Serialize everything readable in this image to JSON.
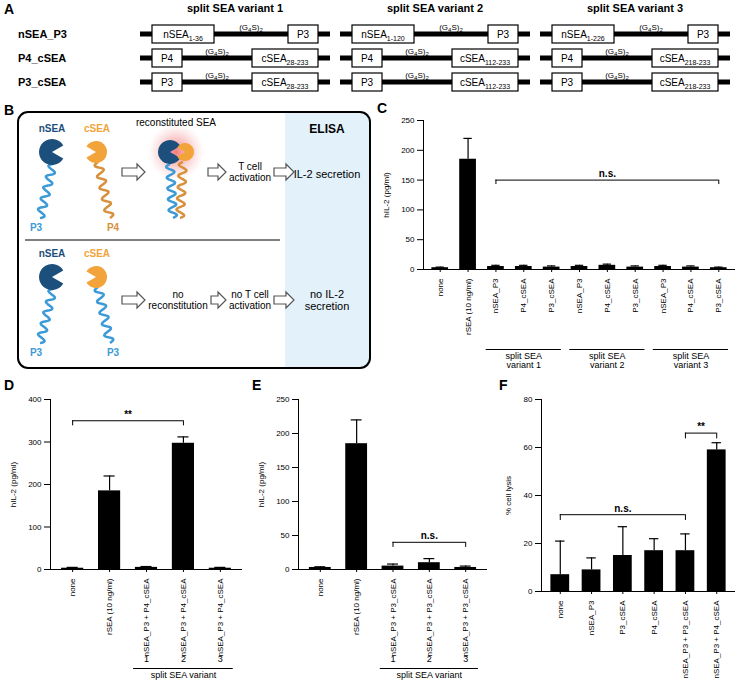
{
  "panel_a": {
    "label": "A",
    "columns": [
      "split SEA variant 1",
      "split SEA variant 2",
      "split SEA variant 3"
    ],
    "linker": [
      {
        "text": "(G"
      },
      {
        "text": "4",
        "sub": true
      },
      {
        "text": "S)"
      },
      {
        "text": "2",
        "sub": true
      }
    ],
    "rows": [
      {
        "name": "nSEA_P3",
        "constructs": [
          [
            {
              "text": "nSEA",
              "sub": "1-36"
            },
            {
              "text": "P3"
            }
          ],
          [
            {
              "text": "nSEA",
              "sub": "1-120"
            },
            {
              "text": "P3"
            }
          ],
          [
            {
              "text": "nSEA",
              "sub": "1-226"
            },
            {
              "text": "P3"
            }
          ]
        ]
      },
      {
        "name": "P4_cSEA",
        "constructs": [
          [
            {
              "text": "P4"
            },
            {
              "text": "cSEA",
              "sub": "28-233"
            }
          ],
          [
            {
              "text": "P4"
            },
            {
              "text": "cSEA",
              "sub": "112-233"
            }
          ],
          [
            {
              "text": "P4"
            },
            {
              "text": "cSEA",
              "sub": "218-233"
            }
          ]
        ]
      },
      {
        "name": "P3_cSEA",
        "constructs": [
          [
            {
              "text": "P3"
            },
            {
              "text": "cSEA",
              "sub": "28-233"
            }
          ],
          [
            {
              "text": "P3"
            },
            {
              "text": "cSEA",
              "sub": "112-233"
            }
          ],
          [
            {
              "text": "P3"
            },
            {
              "text": "cSEA",
              "sub": "218-233"
            }
          ]
        ]
      }
    ]
  },
  "panel_b": {
    "label": "B",
    "nsea": "nSEA",
    "csea": "cSEA",
    "top_left_helix": "P3",
    "top_right_helix": "P4",
    "bottom_left_helix": "P3",
    "bottom_right_helix": "P3",
    "reconstituted": "reconstituted SEA",
    "activation": "T cell activation",
    "readout": "IL-2 secretion",
    "no_reconstitution": "no reconstitution",
    "no_activation": "no T cell activation",
    "no_readout": "no IL-2 secretion",
    "assay": "ELISA"
  },
  "chart_data": [
    {
      "title": "C",
      "type": "bar",
      "y_label": "hIL-2 (pg/ml)",
      "categories": [
        "none",
        "rSEA (10 ng/ml)",
        "nSEA_P3",
        "P4_cSEA",
        "P3_cSEA",
        "nSEA_P3",
        "P4_cSEA",
        "P3_cSEA",
        "nSEA_P3",
        "P4_cSEA",
        "P3_cSEA"
      ],
      "values": [
        3,
        185,
        5,
        5,
        4,
        5,
        7,
        4,
        5,
        4,
        3
      ],
      "errors": [
        1,
        35,
        2,
        2,
        2,
        2,
        2,
        2,
        2,
        2,
        1
      ],
      "color": "#000000",
      "ylim": [
        0,
        250
      ],
      "yticks": [
        0,
        50,
        100,
        150,
        200,
        250
      ],
      "grid": false,
      "annotations": [
        {
          "text": "n.s.",
          "from": 2,
          "to": 10,
          "y": 150
        }
      ],
      "groups": [
        {
          "label": "split SEA variant 1",
          "from": 2,
          "to": 4
        },
        {
          "label": "split SEA variant 2",
          "from": 5,
          "to": 7
        },
        {
          "label": "split SEA variant 3",
          "from": 8,
          "to": 10
        }
      ]
    },
    {
      "title": "D",
      "type": "bar",
      "y_label": "hIL-2 (pg/ml)",
      "categories": [
        "none",
        "rSEA (10 ng/ml)",
        "nSEA_P3 + P4_cSEA",
        "nSEA_P3 + P4_cSEA",
        "nSEA_P3 + P4_cSEA"
      ],
      "category_numbers": [
        null,
        null,
        "1",
        "2",
        "3"
      ],
      "values": [
        3,
        185,
        5,
        297,
        3
      ],
      "errors": [
        2,
        35,
        2,
        15,
        2
      ],
      "color": "#000000",
      "ylim": [
        0,
        400
      ],
      "yticks": [
        0,
        100,
        200,
        300,
        400
      ],
      "grid": false,
      "annotations": [
        {
          "text": "**",
          "from": 0,
          "to": 3,
          "y": 350
        }
      ],
      "groups": [
        {
          "label": "split SEA variant",
          "from": 2,
          "to": 4
        }
      ]
    },
    {
      "title": "E",
      "type": "bar",
      "y_label": "hIL-2 (pg/ml)",
      "categories": [
        "none",
        "rSEA (10 ng/ml)",
        "nSEA_P3 + P3_cSEA",
        "nSEA_P3 + P3_cSEA",
        "nSEA_P3 + P3_cSEA"
      ],
      "category_numbers": [
        null,
        null,
        "1",
        "2",
        "3"
      ],
      "values": [
        3,
        185,
        5,
        10,
        3
      ],
      "errors": [
        1,
        35,
        3,
        6,
        2
      ],
      "color": "#000000",
      "ylim": [
        0,
        250
      ],
      "yticks": [
        0,
        50,
        100,
        150,
        200,
        250
      ],
      "grid": false,
      "annotations": [
        {
          "text": "n.s.",
          "from": 2,
          "to": 4,
          "y": 40
        }
      ],
      "groups": [
        {
          "label": "split SEA variant",
          "from": 2,
          "to": 4
        }
      ]
    },
    {
      "title": "F",
      "type": "bar",
      "y_label": "% cell lysis",
      "categories": [
        "none",
        "nSEA_P3",
        "P3_cSEA",
        "P4_cSEA",
        "nSEA_P3 + P3_cSEA",
        "nSEA_P3 + P4_cSEA"
      ],
      "values": [
        7,
        9,
        15,
        17,
        17,
        59
      ],
      "errors": [
        14,
        5,
        12,
        5,
        7,
        3
      ],
      "color": "#000000",
      "ylim": [
        0,
        80
      ],
      "yticks": [
        0,
        20,
        40,
        60,
        80
      ],
      "grid": false,
      "annotations": [
        {
          "text": "n.s.",
          "from": 0,
          "to": 4,
          "y": 32
        },
        {
          "text": "**",
          "from": 4,
          "to": 5,
          "y": 66
        }
      ]
    }
  ]
}
